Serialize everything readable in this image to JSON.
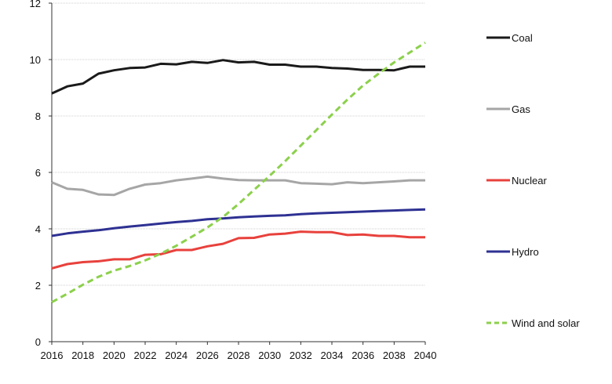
{
  "chart_data": {
    "type": "line",
    "title": "",
    "xlabel": "",
    "ylabel": "",
    "xlim": [
      2016,
      2040
    ],
    "ylim": [
      0,
      12
    ],
    "x_ticks": [
      2016,
      2018,
      2020,
      2022,
      2024,
      2026,
      2028,
      2030,
      2032,
      2034,
      2036,
      2038,
      2040
    ],
    "y_ticks": [
      0,
      2,
      4,
      6,
      8,
      10,
      12
    ],
    "grid": "horizontal",
    "legend_position": "right",
    "x": [
      2016,
      2017,
      2018,
      2019,
      2020,
      2021,
      2022,
      2023,
      2024,
      2025,
      2026,
      2027,
      2028,
      2029,
      2030,
      2031,
      2032,
      2033,
      2034,
      2035,
      2036,
      2037,
      2038,
      2039,
      2040
    ],
    "series": [
      {
        "name": "Coal",
        "color": "#1a1a1a",
        "dash": "solid",
        "values": [
          8.8,
          9.05,
          9.15,
          9.5,
          9.62,
          9.7,
          9.72,
          9.85,
          9.83,
          9.92,
          9.88,
          9.98,
          9.9,
          9.92,
          9.82,
          9.82,
          9.75,
          9.75,
          9.7,
          9.68,
          9.63,
          9.63,
          9.62,
          9.75,
          9.75
        ]
      },
      {
        "name": "Gas",
        "color": "#a6a6a6",
        "dash": "solid",
        "values": [
          5.65,
          5.42,
          5.38,
          5.22,
          5.2,
          5.42,
          5.57,
          5.62,
          5.72,
          5.78,
          5.85,
          5.78,
          5.73,
          5.72,
          5.72,
          5.72,
          5.62,
          5.6,
          5.58,
          5.65,
          5.62,
          5.65,
          5.68,
          5.72,
          5.72
        ]
      },
      {
        "name": "Nuclear",
        "color": "#e8413c",
        "dash": "solid",
        "values": [
          2.6,
          2.75,
          2.82,
          2.85,
          2.92,
          2.92,
          3.08,
          3.1,
          3.25,
          3.25,
          3.38,
          3.47,
          3.67,
          3.68,
          3.8,
          3.83,
          3.9,
          3.88,
          3.88,
          3.78,
          3.8,
          3.75,
          3.75,
          3.7,
          3.7
        ]
      },
      {
        "name": "Hydro",
        "color": "#2e3192",
        "dash": "solid",
        "values": [
          3.75,
          3.84,
          3.9,
          3.95,
          4.02,
          4.08,
          4.13,
          4.19,
          4.24,
          4.28,
          4.34,
          4.37,
          4.41,
          4.44,
          4.46,
          4.48,
          4.52,
          4.55,
          4.57,
          4.59,
          4.61,
          4.63,
          4.65,
          4.67,
          4.69
        ]
      },
      {
        "name": "Wind and solar",
        "color": "#8cd04c",
        "dash": "dashed",
        "values": [
          1.4,
          1.7,
          2.02,
          2.3,
          2.52,
          2.68,
          2.88,
          3.12,
          3.4,
          3.72,
          4.05,
          4.42,
          4.88,
          5.38,
          5.88,
          6.4,
          6.95,
          7.5,
          8.05,
          8.58,
          9.08,
          9.5,
          9.9,
          10.25,
          10.6
        ]
      }
    ]
  }
}
